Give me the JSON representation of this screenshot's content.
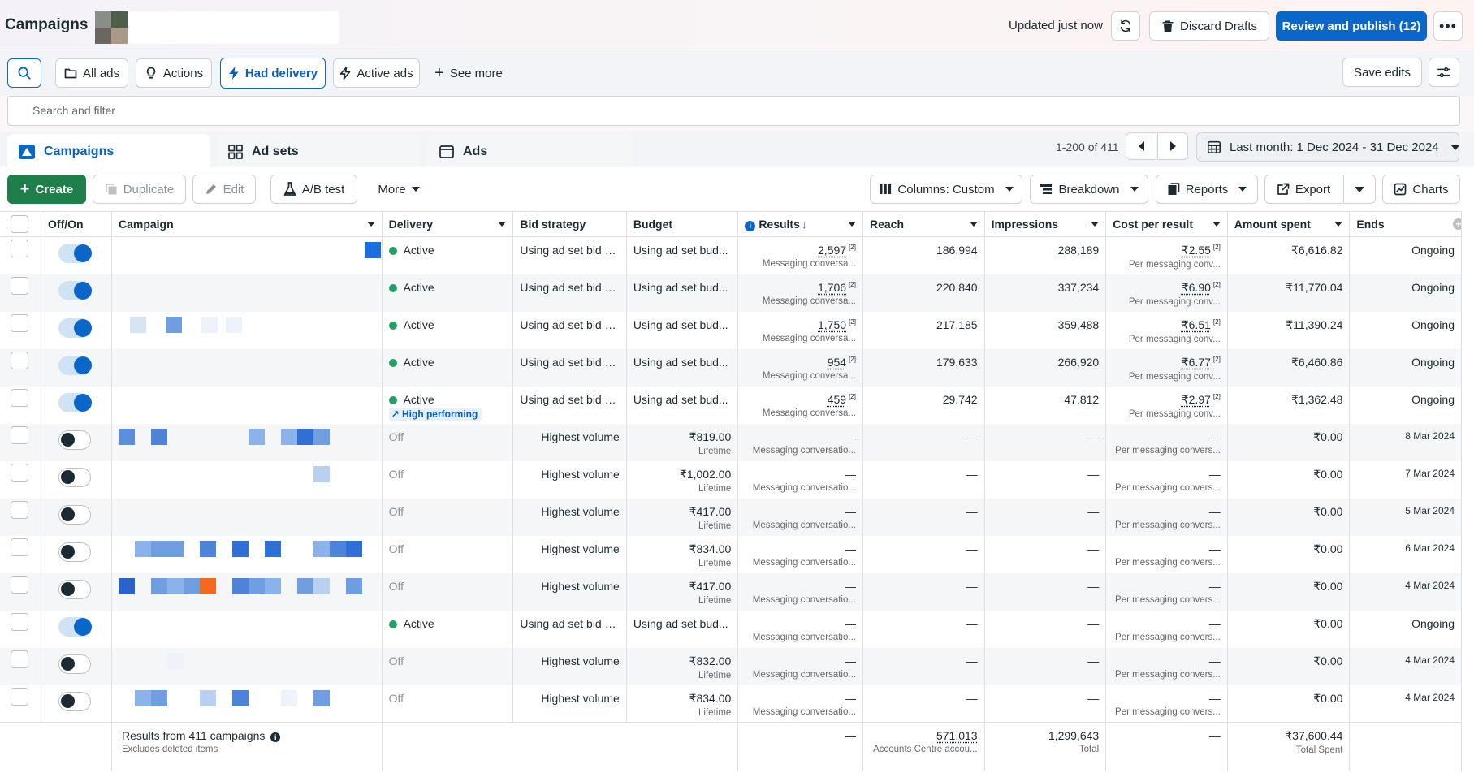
{
  "header": {
    "title": "Campaigns",
    "updated_text": "Updated just now",
    "discard_label": "Discard Drafts",
    "publish_label": "Review and publish (12)"
  },
  "filters": {
    "all_ads": "All ads",
    "actions": "Actions",
    "had_delivery": "Had delivery",
    "active_ads": "Active ads",
    "see_more": "See more",
    "save_edits": "Save edits"
  },
  "search": {
    "placeholder": "Search and filter"
  },
  "tabs": [
    {
      "label": "Campaigns"
    },
    {
      "label": "Ad sets"
    },
    {
      "label": "Ads"
    }
  ],
  "pager": {
    "range_text": "1-200 of 411"
  },
  "date_range": "Last month: 1 Dec 2024 - 31 Dec 2024",
  "toolbar": {
    "create": "Create",
    "duplicate": "Duplicate",
    "edit": "Edit",
    "ab_test": "A/B test",
    "more": "More",
    "columns": "Columns: Custom",
    "breakdown": "Breakdown",
    "reports": "Reports",
    "export": "Export",
    "charts": "Charts"
  },
  "columns": {
    "offon": "Off/On",
    "campaign": "Campaign",
    "delivery": "Delivery",
    "bid": "Bid strategy",
    "budget": "Budget",
    "results": "Results",
    "reach": "Reach",
    "impressions": "Impressions",
    "cpr": "Cost per result",
    "spent": "Amount spent",
    "ends": "Ends"
  },
  "rows": [
    {
      "on": true,
      "delivery": "Active",
      "bid": "Using ad set bid s...",
      "budget": "Using ad set bud...",
      "budget_sub": "",
      "results": "2,597",
      "results_sub": "Messaging conversa...",
      "reach": "186,994",
      "impressions": "288,189",
      "cpr": "₹2.55",
      "cpr_sub": "Per messaging conv...",
      "spent": "₹6,616.82",
      "ends": "Ongoing"
    },
    {
      "on": true,
      "delivery": "Active",
      "bid": "Using ad set bid s...",
      "budget": "Using ad set bud...",
      "budget_sub": "",
      "results": "1,706",
      "results_sub": "Messaging conversa...",
      "reach": "220,840",
      "impressions": "337,234",
      "cpr": "₹6.90",
      "cpr_sub": "Per messaging conv...",
      "spent": "₹11,770.04",
      "ends": "Ongoing"
    },
    {
      "on": true,
      "delivery": "Active",
      "bid": "Using ad set bid s...",
      "budget": "Using ad set bud...",
      "budget_sub": "",
      "results": "1,750",
      "results_sub": "Messaging conversa...",
      "reach": "217,185",
      "impressions": "359,488",
      "cpr": "₹6.51",
      "cpr_sub": "Per messaging conv...",
      "spent": "₹11,390.24",
      "ends": "Ongoing"
    },
    {
      "on": true,
      "delivery": "Active",
      "bid": "Using ad set bid s...",
      "budget": "Using ad set bud...",
      "budget_sub": "",
      "results": "954",
      "results_sub": "Messaging conversa...",
      "reach": "179,633",
      "impressions": "266,920",
      "cpr": "₹6.77",
      "cpr_sub": "Per messaging conv...",
      "spent": "₹6,460.86",
      "ends": "Ongoing"
    },
    {
      "on": true,
      "delivery": "Active",
      "badge": "High performing",
      "bid": "Using ad set bid s...",
      "budget": "Using ad set bud...",
      "budget_sub": "",
      "results": "459",
      "results_sub": "Messaging conversa...",
      "reach": "29,742",
      "impressions": "47,812",
      "cpr": "₹2.97",
      "cpr_sub": "Per messaging conv...",
      "spent": "₹1,362.48",
      "ends": "Ongoing"
    },
    {
      "on": false,
      "delivery": "Off",
      "bid": "Highest volume",
      "budget": "₹819.00",
      "budget_sub": "Lifetime",
      "results": "—",
      "results_sub": "Messaging conversatio...",
      "reach": "—",
      "impressions": "—",
      "cpr": "—",
      "cpr_sub": "Per messaging convers...",
      "spent": "₹0.00",
      "ends": "8 Mar 2024"
    },
    {
      "on": false,
      "delivery": "Off",
      "bid": "Highest volume",
      "budget": "₹1,002.00",
      "budget_sub": "Lifetime",
      "results": "—",
      "results_sub": "Messaging conversatio...",
      "reach": "—",
      "impressions": "—",
      "cpr": "—",
      "cpr_sub": "Per messaging convers...",
      "spent": "₹0.00",
      "ends": "7 Mar 2024"
    },
    {
      "on": false,
      "delivery": "Off",
      "bid": "Highest volume",
      "budget": "₹417.00",
      "budget_sub": "Lifetime",
      "results": "—",
      "results_sub": "Messaging conversatio...",
      "reach": "—",
      "impressions": "—",
      "cpr": "—",
      "cpr_sub": "Per messaging convers...",
      "spent": "₹0.00",
      "ends": "5 Mar 2024"
    },
    {
      "on": false,
      "delivery": "Off",
      "bid": "Highest volume",
      "budget": "₹834.00",
      "budget_sub": "Lifetime",
      "results": "—",
      "results_sub": "Messaging conversatio...",
      "reach": "—",
      "impressions": "—",
      "cpr": "—",
      "cpr_sub": "Per messaging convers...",
      "spent": "₹0.00",
      "ends": "6 Mar 2024"
    },
    {
      "on": false,
      "delivery": "Off",
      "bid": "Highest volume",
      "budget": "₹417.00",
      "budget_sub": "Lifetime",
      "results": "—",
      "results_sub": "Messaging conversatio...",
      "reach": "—",
      "impressions": "—",
      "cpr": "—",
      "cpr_sub": "Per messaging convers...",
      "spent": "₹0.00",
      "ends": "4 Mar 2024"
    },
    {
      "on": true,
      "delivery": "Active",
      "bid": "Using ad set bid s...",
      "budget": "Using ad set bud...",
      "budget_sub": "",
      "results": "—",
      "results_sub": "Messaging conversatio...",
      "reach": "—",
      "impressions": "—",
      "cpr": "—",
      "cpr_sub": "Per messaging convers...",
      "spent": "₹0.00",
      "ends": "Ongoing"
    },
    {
      "on": false,
      "delivery": "Off",
      "bid": "Highest volume",
      "budget": "₹832.00",
      "budget_sub": "Lifetime",
      "results": "—",
      "results_sub": "Messaging conversatio...",
      "reach": "—",
      "impressions": "—",
      "cpr": "—",
      "cpr_sub": "Per messaging convers...",
      "spent": "₹0.00",
      "ends": "4 Mar 2024"
    },
    {
      "on": false,
      "delivery": "Off",
      "bid": "Highest volume",
      "budget": "₹834.00",
      "budget_sub": "Lifetime",
      "results": "—",
      "results_sub": "Messaging conversatio...",
      "reach": "—",
      "impressions": "—",
      "cpr": "—",
      "cpr_sub": "Per messaging convers...",
      "spent": "₹0.00",
      "ends": "4 Mar 2024"
    }
  ],
  "footer": {
    "results_from": "Results from 411 campaigns",
    "excludes": "Excludes deleted items",
    "results": "—",
    "reach": "571,013",
    "reach_sub": "Accounts Centre accou...",
    "impressions": "1,299,643",
    "impressions_sub": "Total",
    "cpr": "—",
    "spent": "₹37,600.44",
    "spent_sub": "Total Spent"
  },
  "colors": {
    "accent": "#0a66c9",
    "create_green": "#1f7f4a",
    "active_dot": "#23a162"
  }
}
